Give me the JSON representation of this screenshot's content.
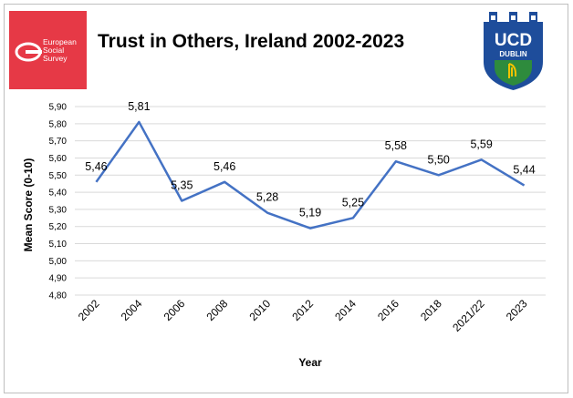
{
  "header": {
    "title": "Trust in Others, Ireland 2002-2023",
    "ess_logo_text": [
      "European",
      "Social",
      "Survey"
    ],
    "ucd_logo_text": [
      "UCD",
      "DUBLIN"
    ]
  },
  "colors": {
    "line": "#4472c4",
    "gridline": "#d9d9d9",
    "ess_red": "#e63946",
    "ucd_blue": "#1e4d9b",
    "ucd_green": "#2e8b3d",
    "ucd_gold": "#f2c200"
  },
  "chart_data": {
    "type": "line",
    "title": "Trust in Others, Ireland 2002-2023",
    "xlabel": "Year",
    "ylabel": "Mean Score (0-10)",
    "categories": [
      "2002",
      "2004",
      "2006",
      "2008",
      "2010",
      "2012",
      "2014",
      "2016",
      "2018",
      "2021/22",
      "2023"
    ],
    "series": [
      {
        "values": [
          5.46,
          5.81,
          5.35,
          5.46,
          5.28,
          5.19,
          5.25,
          5.58,
          5.5,
          5.59,
          5.44
        ],
        "labels": [
          "5,46",
          "5,81",
          "5,35",
          "5,46",
          "5,28",
          "5,19",
          "5,25",
          "5,58",
          "5,50",
          "5,59",
          "5,44"
        ]
      }
    ],
    "ylim": [
      4.8,
      5.9
    ],
    "yticks": [
      "4,80",
      "4,90",
      "5,00",
      "5,10",
      "5,20",
      "5,30",
      "5,40",
      "5,50",
      "5,60",
      "5,70",
      "5,80",
      "5,90"
    ],
    "grid": true,
    "legend": "none"
  }
}
